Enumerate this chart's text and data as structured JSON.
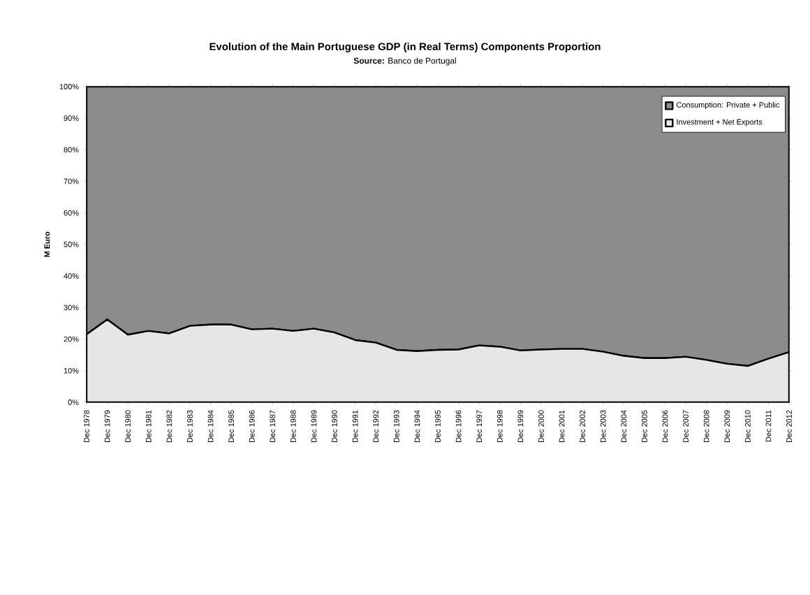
{
  "chart_data": {
    "type": "area",
    "title": "Evolution of the Main Portuguese GDP (in Real Terms) Components Proportion",
    "subtitle": "**Source:** Banco de Portugal",
    "ylabel": "M Euro",
    "categories": [
      "Dec 1978",
      "Dec 1979",
      "Dec 1980",
      "Dec 1981",
      "Dec 1982",
      "Dec 1983",
      "Dec 1984",
      "Dec 1985",
      "Dec 1986",
      "Dec 1987",
      "Dec 1988",
      "Dec 1989",
      "Dec 1990",
      "Dec 1991",
      "Dec 1992",
      "Dec 1993",
      "Dec 1994",
      "Dec 1995",
      "Dec 1996",
      "Dec 1997",
      "Dec 1998",
      "Dec 1999",
      "Dec 2000",
      "Dec 2001",
      "Dec 2002",
      "Dec 2003",
      "Dec 2004",
      "Dec 2005",
      "Dec 2006",
      "Dec 2007",
      "Dec 2008",
      "Dec 2009",
      "Dec 2010",
      "Dec 2011",
      "Dec 2012"
    ],
    "stacked": true,
    "series": [
      {
        "name": "Investment + Net Exports",
        "color": "#e6e6e6",
        "values": [
          21.5,
          26.2,
          21.4,
          22.6,
          21.8,
          24.2,
          24.6,
          24.6,
          23.1,
          23.3,
          22.6,
          23.3,
          22.1,
          19.7,
          18.9,
          16.6,
          16.2,
          16.6,
          16.7,
          18.0,
          17.6,
          16.4,
          16.7,
          16.9,
          16.9,
          16.0,
          14.7,
          14.0,
          14.0,
          14.4,
          13.4,
          12.2,
          11.5,
          13.8,
          15.9
        ]
      },
      {
        "name": "Consumption: Private + Public",
        "color": "#8c8c8c",
        "values": [
          78.5,
          73.8,
          78.6,
          77.4,
          78.2,
          75.8,
          75.4,
          75.4,
          76.9,
          76.7,
          77.4,
          76.7,
          77.9,
          80.3,
          81.1,
          83.4,
          83.8,
          83.4,
          83.3,
          82.0,
          82.4,
          83.6,
          83.3,
          83.1,
          83.1,
          84.0,
          85.3,
          86.0,
          86.0,
          85.6,
          86.6,
          87.8,
          88.5,
          86.2,
          84.1
        ]
      }
    ],
    "ylim": [
      0,
      100
    ],
    "yticks": [
      {
        "value": 0,
        "label": "0%"
      },
      {
        "value": 10,
        "label": "10%"
      },
      {
        "value": 20,
        "label": "20%"
      },
      {
        "value": 30,
        "label": "30%"
      },
      {
        "value": 40,
        "label": "40%"
      },
      {
        "value": 50,
        "label": "50%"
      },
      {
        "value": 60,
        "label": "60%"
      },
      {
        "value": 70,
        "label": "70%"
      },
      {
        "value": 80,
        "label": "80%"
      },
      {
        "value": 90,
        "label": "90%"
      },
      {
        "value": 100,
        "label": "100%"
      }
    ],
    "legend": "top right"
  }
}
